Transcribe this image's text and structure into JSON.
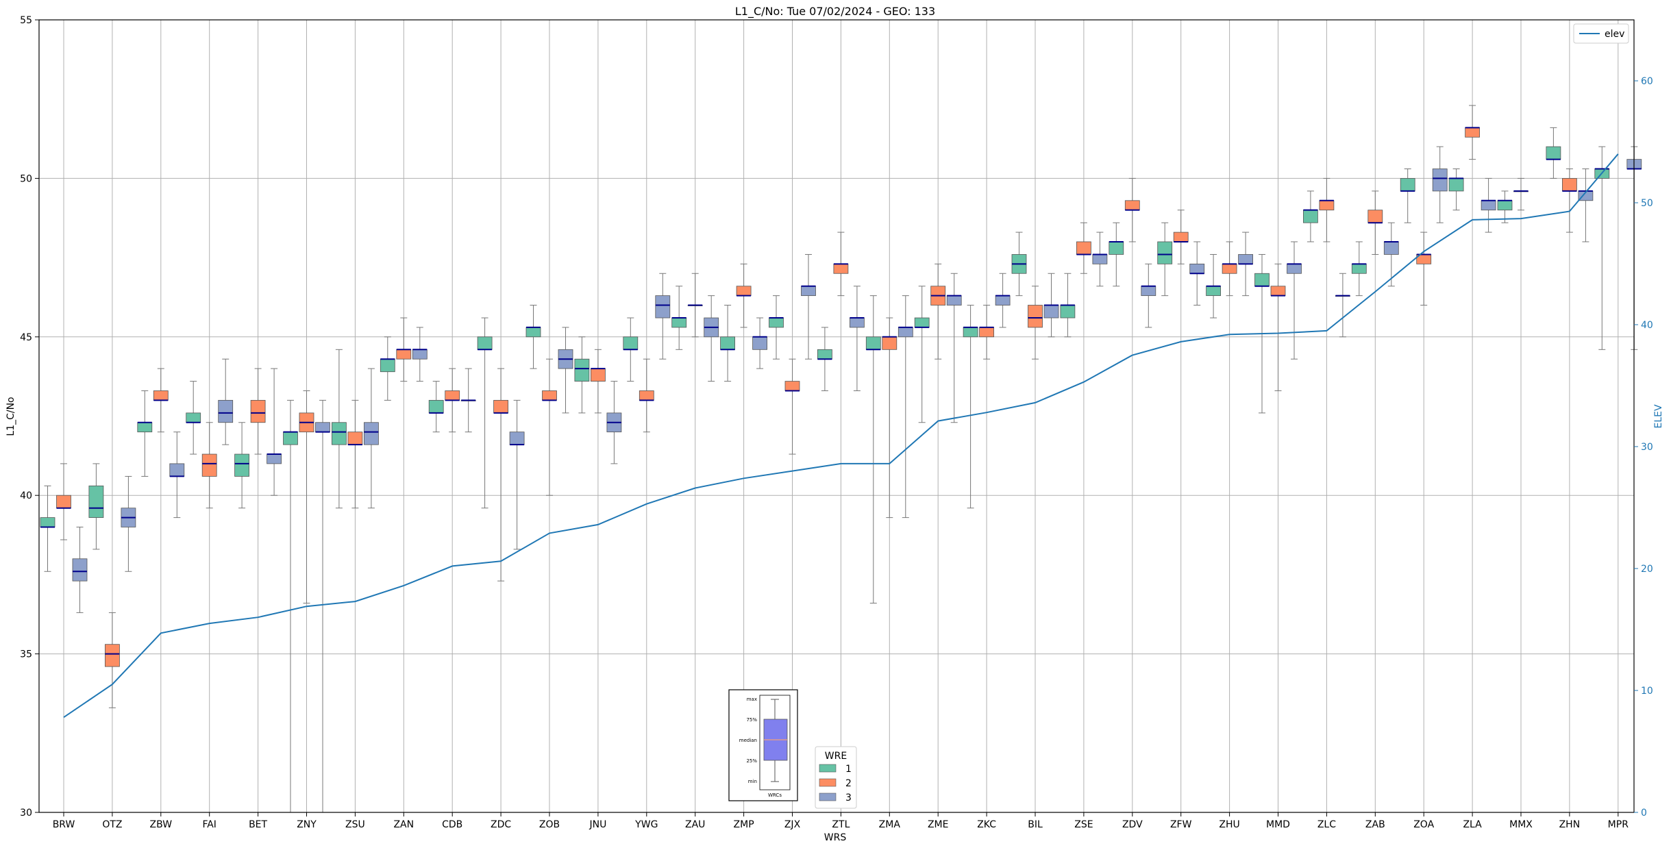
{
  "chart_data": {
    "type": "box",
    "title": "L1_C/No: Tue 07/02/2024 - GEO: 133",
    "xlabel": "WRS",
    "ylabel": "L1_C/No",
    "y2label": "ELEV",
    "ylim": [
      30,
      55
    ],
    "y2lim": [
      0,
      65
    ],
    "yticks": [
      30,
      35,
      40,
      45,
      50,
      55
    ],
    "y2ticks": [
      0,
      10,
      20,
      30,
      40,
      50,
      60
    ],
    "grid": true,
    "categories": [
      "BRW",
      "OTZ",
      "ZBW",
      "FAI",
      "BET",
      "ZNY",
      "ZSU",
      "ZAN",
      "CDB",
      "ZDC",
      "ZOB",
      "JNU",
      "YWG",
      "ZAU",
      "ZMP",
      "ZJX",
      "ZTL",
      "ZMA",
      "ZME",
      "ZKC",
      "BIL",
      "ZSE",
      "ZDV",
      "ZFW",
      "ZHU",
      "MMD",
      "ZLC",
      "ZAB",
      "ZOA",
      "ZLA",
      "MMX",
      "ZHN",
      "MPR"
    ],
    "wre_legend": {
      "title": "WRE",
      "entries": [
        {
          "label": "1",
          "color": "#66c2a5"
        },
        {
          "label": "2",
          "color": "#fc8d62"
        },
        {
          "label": "3",
          "color": "#8da0cb"
        }
      ],
      "placement": "bottom-center"
    },
    "line_legend": {
      "label": "elev",
      "color": "#1f77b4",
      "placement": "top-right"
    },
    "box_key": {
      "labels": [
        "max",
        "75%",
        "median",
        "25%",
        "min"
      ],
      "xlabel": "WRCs",
      "fill": "#8080ee"
    },
    "median_color": "#00008b",
    "whisker_color": "#777777",
    "elev": [
      7.8,
      10.5,
      14.7,
      15.5,
      16.0,
      16.9,
      17.3,
      18.6,
      20.2,
      20.6,
      22.9,
      23.6,
      25.3,
      26.6,
      27.4,
      28.0,
      28.6,
      28.6,
      32.1,
      32.8,
      33.6,
      35.3,
      37.5,
      38.6,
      39.2,
      39.3,
      39.5,
      42.7,
      46.0,
      48.6,
      48.7,
      49.3,
      54.0
    ],
    "series": [
      {
        "name": "1",
        "boxes": [
          {
            "x": "BRW",
            "min": 37.6,
            "q1": 39.0,
            "med": 39.0,
            "q3": 39.3,
            "max": 40.3
          },
          {
            "x": "OTZ",
            "min": 38.3,
            "q1": 39.3,
            "med": 39.6,
            "q3": 40.3,
            "max": 41.0
          },
          {
            "x": "ZBW",
            "min": 40.6,
            "q1": 42.0,
            "med": 42.3,
            "q3": 42.3,
            "max": 43.3
          },
          {
            "x": "FAI",
            "min": 41.3,
            "q1": 42.3,
            "med": 42.3,
            "q3": 42.6,
            "max": 43.6
          },
          {
            "x": "BET",
            "min": 39.6,
            "q1": 40.6,
            "med": 41.0,
            "q3": 41.3,
            "max": 42.3
          },
          {
            "x": "ZNY",
            "min": 30.0,
            "q1": 41.6,
            "med": 42.0,
            "q3": 42.0,
            "max": 43.0
          },
          {
            "x": "ZSU",
            "min": 39.6,
            "q1": 41.6,
            "med": 42.0,
            "q3": 42.3,
            "max": 44.6
          },
          {
            "x": "ZAN",
            "min": 43.0,
            "q1": 43.9,
            "med": 44.3,
            "q3": 44.3,
            "max": 45.0
          },
          {
            "x": "CDB",
            "min": 42.0,
            "q1": 42.6,
            "med": 42.6,
            "q3": 43.0,
            "max": 43.6
          },
          {
            "x": "ZDC",
            "min": 39.6,
            "q1": 44.6,
            "med": 44.6,
            "q3": 45.0,
            "max": 45.6
          },
          {
            "x": "ZOB",
            "min": 44.0,
            "q1": 45.0,
            "med": 45.3,
            "q3": 45.3,
            "max": 46.0
          },
          {
            "x": "JNU",
            "min": 42.6,
            "q1": 43.6,
            "med": 44.0,
            "q3": 44.3,
            "max": 45.0
          },
          {
            "x": "YWG",
            "min": 43.6,
            "q1": 44.6,
            "med": 44.6,
            "q3": 45.0,
            "max": 45.6
          },
          {
            "x": "ZAU",
            "min": 44.6,
            "q1": 45.3,
            "med": 45.6,
            "q3": 45.6,
            "max": 46.6
          },
          {
            "x": "ZMP",
            "min": 43.6,
            "q1": 44.6,
            "med": 44.6,
            "q3": 45.0,
            "max": 46.0
          },
          {
            "x": "ZJX",
            "min": 44.3,
            "q1": 45.3,
            "med": 45.6,
            "q3": 45.6,
            "max": 46.3
          },
          {
            "x": "ZTL",
            "min": 43.3,
            "q1": 44.3,
            "med": 44.3,
            "q3": 44.6,
            "max": 45.3
          },
          {
            "x": "ZMA",
            "min": 36.6,
            "q1": 44.6,
            "med": 44.6,
            "q3": 45.0,
            "max": 46.3
          },
          {
            "x": "ZME",
            "min": 42.3,
            "q1": 45.3,
            "med": 45.3,
            "q3": 45.6,
            "max": 46.6
          },
          {
            "x": "ZKC",
            "min": 39.6,
            "q1": 45.0,
            "med": 45.3,
            "q3": 45.3,
            "max": 46.0
          },
          {
            "x": "BIL",
            "min": 46.3,
            "q1": 47.0,
            "med": 47.3,
            "q3": 47.6,
            "max": 48.3
          },
          {
            "x": "ZSE",
            "min": 45.0,
            "q1": 45.6,
            "med": 46.0,
            "q3": 46.0,
            "max": 47.0
          },
          {
            "x": "ZDV",
            "min": 46.6,
            "q1": 47.6,
            "med": 48.0,
            "q3": 48.0,
            "max": 48.6
          },
          {
            "x": "ZFW",
            "min": 46.3,
            "q1": 47.3,
            "med": 47.6,
            "q3": 48.0,
            "max": 48.6
          },
          {
            "x": "ZHU",
            "min": 45.6,
            "q1": 46.3,
            "med": 46.6,
            "q3": 46.6,
            "max": 47.6
          },
          {
            "x": "MMD",
            "min": 42.6,
            "q1": 46.6,
            "med": 46.6,
            "q3": 47.0,
            "max": 47.6
          },
          {
            "x": "ZLC",
            "min": 48.0,
            "q1": 48.6,
            "med": 49.0,
            "q3": 49.0,
            "max": 49.6
          },
          {
            "x": "ZAB",
            "min": 46.3,
            "q1": 47.0,
            "med": 47.3,
            "q3": 47.3,
            "max": 48.0
          },
          {
            "x": "ZOA",
            "min": 48.6,
            "q1": 49.6,
            "med": 49.6,
            "q3": 50.0,
            "max": 50.3
          },
          {
            "x": "ZLA",
            "min": 49.0,
            "q1": 49.6,
            "med": 50.0,
            "q3": 50.0,
            "max": 50.3
          },
          {
            "x": "MMX",
            "min": 48.6,
            "q1": 49.0,
            "med": 49.3,
            "q3": 49.3,
            "max": 49.6
          },
          {
            "x": "ZHN",
            "min": 50.0,
            "q1": 50.6,
            "med": 50.6,
            "q3": 51.0,
            "max": 51.6
          },
          {
            "x": "MPR",
            "min": 44.6,
            "q1": 50.0,
            "med": 50.3,
            "q3": 50.3,
            "max": 51.0
          }
        ]
      },
      {
        "name": "2",
        "boxes": [
          {
            "x": "BRW",
            "min": 38.6,
            "q1": 39.6,
            "med": 39.6,
            "q3": 40.0,
            "max": 41.0
          },
          {
            "x": "OTZ",
            "min": 33.3,
            "q1": 34.6,
            "med": 35.0,
            "q3": 35.3,
            "max": 36.3
          },
          {
            "x": "ZBW",
            "min": 42.0,
            "q1": 43.0,
            "med": 43.0,
            "q3": 43.3,
            "max": 44.0
          },
          {
            "x": "FAI",
            "min": 39.6,
            "q1": 40.6,
            "med": 41.0,
            "q3": 41.3,
            "max": 42.3
          },
          {
            "x": "BET",
            "min": 41.3,
            "q1": 42.3,
            "med": 42.6,
            "q3": 43.0,
            "max": 44.0
          },
          {
            "x": "ZNY",
            "min": 36.6,
            "q1": 42.0,
            "med": 42.3,
            "q3": 42.6,
            "max": 43.3
          },
          {
            "x": "ZSU",
            "min": 39.6,
            "q1": 41.6,
            "med": 41.6,
            "q3": 42.0,
            "max": 43.0
          },
          {
            "x": "ZAN",
            "min": 43.6,
            "q1": 44.3,
            "med": 44.6,
            "q3": 44.6,
            "max": 45.6
          },
          {
            "x": "CDB",
            "min": 42.0,
            "q1": 43.0,
            "med": 43.0,
            "q3": 43.3,
            "max": 44.0
          },
          {
            "x": "ZDC",
            "min": 37.3,
            "q1": 42.6,
            "med": 42.6,
            "q3": 43.0,
            "max": 44.0
          },
          {
            "x": "ZOB",
            "min": 40.0,
            "q1": 43.0,
            "med": 43.0,
            "q3": 43.3,
            "max": 44.3
          },
          {
            "x": "JNU",
            "min": 42.6,
            "q1": 43.6,
            "med": 44.0,
            "q3": 44.0,
            "max": 44.6
          },
          {
            "x": "YWG",
            "min": 42.0,
            "q1": 43.0,
            "med": 43.0,
            "q3": 43.3,
            "max": 44.3
          },
          {
            "x": "ZAU",
            "min": 45.0,
            "q1": 46.0,
            "med": 46.0,
            "q3": 46.0,
            "max": 47.0
          },
          {
            "x": "ZMP",
            "min": 45.3,
            "q1": 46.3,
            "med": 46.3,
            "q3": 46.6,
            "max": 47.3
          },
          {
            "x": "ZJX",
            "min": 41.3,
            "q1": 43.3,
            "med": 43.3,
            "q3": 43.6,
            "max": 44.3
          },
          {
            "x": "ZTL",
            "min": 46.3,
            "q1": 47.0,
            "med": 47.3,
            "q3": 47.3,
            "max": 48.3
          },
          {
            "x": "ZMA",
            "min": 39.3,
            "q1": 44.6,
            "med": 45.0,
            "q3": 45.0,
            "max": 45.6
          },
          {
            "x": "ZME",
            "min": 44.3,
            "q1": 46.0,
            "med": 46.3,
            "q3": 46.6,
            "max": 47.3
          },
          {
            "x": "ZKC",
            "min": 44.3,
            "q1": 45.0,
            "med": 45.3,
            "q3": 45.3,
            "max": 46.0
          },
          {
            "x": "BIL",
            "min": 44.3,
            "q1": 45.3,
            "med": 45.6,
            "q3": 46.0,
            "max": 46.6
          },
          {
            "x": "ZSE",
            "min": 47.0,
            "q1": 47.6,
            "med": 47.6,
            "q3": 48.0,
            "max": 48.6
          },
          {
            "x": "ZDV",
            "min": 48.0,
            "q1": 49.0,
            "med": 49.0,
            "q3": 49.3,
            "max": 50.0
          },
          {
            "x": "ZFW",
            "min": 47.3,
            "q1": 48.0,
            "med": 48.0,
            "q3": 48.3,
            "max": 49.0
          },
          {
            "x": "ZHU",
            "min": 46.3,
            "q1": 47.0,
            "med": 47.3,
            "q3": 47.3,
            "max": 48.0
          },
          {
            "x": "MMD",
            "min": 43.3,
            "q1": 46.3,
            "med": 46.3,
            "q3": 46.6,
            "max": 47.3
          },
          {
            "x": "ZLC",
            "min": 48.0,
            "q1": 49.0,
            "med": 49.3,
            "q3": 49.3,
            "max": 50.0
          },
          {
            "x": "ZAB",
            "min": 47.6,
            "q1": 48.6,
            "med": 48.6,
            "q3": 49.0,
            "max": 49.6
          },
          {
            "x": "ZOA",
            "min": 46.0,
            "q1": 47.3,
            "med": 47.6,
            "q3": 47.6,
            "max": 48.3
          },
          {
            "x": "ZLA",
            "min": 50.6,
            "q1": 51.3,
            "med": 51.6,
            "q3": 51.6,
            "max": 52.3
          },
          {
            "x": "MMX",
            "min": 49.0,
            "q1": 49.6,
            "med": 49.6,
            "q3": 49.6,
            "max": 50.0
          },
          {
            "x": "ZHN",
            "min": 48.3,
            "q1": 49.6,
            "med": 49.6,
            "q3": 50.0,
            "max": 50.3
          },
          {
            "x": "MPR",
            "min": null,
            "q1": null,
            "med": null,
            "q3": null,
            "max": null
          }
        ]
      },
      {
        "name": "3",
        "boxes": [
          {
            "x": "BRW",
            "min": 36.3,
            "q1": 37.3,
            "med": 37.6,
            "q3": 38.0,
            "max": 39.0
          },
          {
            "x": "OTZ",
            "min": 37.6,
            "q1": 39.0,
            "med": 39.3,
            "q3": 39.6,
            "max": 40.6
          },
          {
            "x": "ZBW",
            "min": 39.3,
            "q1": 40.6,
            "med": 40.6,
            "q3": 41.0,
            "max": 42.0
          },
          {
            "x": "FAI",
            "min": 41.6,
            "q1": 42.3,
            "med": 42.6,
            "q3": 43.0,
            "max": 44.3
          },
          {
            "x": "BET",
            "min": 40.0,
            "q1": 41.0,
            "med": 41.3,
            "q3": 41.3,
            "max": 44.0
          },
          {
            "x": "ZNY",
            "min": 30.0,
            "q1": 42.0,
            "med": 42.0,
            "q3": 42.3,
            "max": 43.0
          },
          {
            "x": "ZSU",
            "min": 39.6,
            "q1": 41.6,
            "med": 42.0,
            "q3": 42.3,
            "max": 44.0
          },
          {
            "x": "ZAN",
            "min": 43.6,
            "q1": 44.3,
            "med": 44.6,
            "q3": 44.6,
            "max": 45.3
          },
          {
            "x": "CDB",
            "min": 42.0,
            "q1": 43.0,
            "med": 43.0,
            "q3": 43.0,
            "max": 44.0
          },
          {
            "x": "ZDC",
            "min": 38.3,
            "q1": 41.6,
            "med": 41.6,
            "q3": 42.0,
            "max": 43.0
          },
          {
            "x": "ZOB",
            "min": 42.6,
            "q1": 44.0,
            "med": 44.3,
            "q3": 44.6,
            "max": 45.3
          },
          {
            "x": "JNU",
            "min": 41.0,
            "q1": 42.0,
            "med": 42.3,
            "q3": 42.6,
            "max": 43.6
          },
          {
            "x": "YWG",
            "min": 44.3,
            "q1": 45.6,
            "med": 46.0,
            "q3": 46.3,
            "max": 47.0
          },
          {
            "x": "ZAU",
            "min": 43.6,
            "q1": 45.0,
            "med": 45.3,
            "q3": 45.6,
            "max": 46.3
          },
          {
            "x": "ZMP",
            "min": 44.0,
            "q1": 44.6,
            "med": 45.0,
            "q3": 45.0,
            "max": 45.6
          },
          {
            "x": "ZJX",
            "min": 44.3,
            "q1": 46.3,
            "med": 46.6,
            "q3": 46.6,
            "max": 47.6
          },
          {
            "x": "ZTL",
            "min": 43.3,
            "q1": 45.3,
            "med": 45.6,
            "q3": 45.6,
            "max": 46.6
          },
          {
            "x": "ZMA",
            "min": 39.3,
            "q1": 45.0,
            "med": 45.3,
            "q3": 45.3,
            "max": 46.3
          },
          {
            "x": "ZME",
            "min": 42.3,
            "q1": 46.0,
            "med": 46.3,
            "q3": 46.3,
            "max": 47.0
          },
          {
            "x": "ZKC",
            "min": 45.3,
            "q1": 46.0,
            "med": 46.3,
            "q3": 46.3,
            "max": 47.0
          },
          {
            "x": "BIL",
            "min": 45.0,
            "q1": 45.6,
            "med": 46.0,
            "q3": 46.0,
            "max": 47.0
          },
          {
            "x": "ZSE",
            "min": 46.6,
            "q1": 47.3,
            "med": 47.6,
            "q3": 47.6,
            "max": 48.3
          },
          {
            "x": "ZDV",
            "min": 45.3,
            "q1": 46.3,
            "med": 46.6,
            "q3": 46.6,
            "max": 47.3
          },
          {
            "x": "ZFW",
            "min": 46.0,
            "q1": 47.0,
            "med": 47.0,
            "q3": 47.3,
            "max": 48.0
          },
          {
            "x": "ZHU",
            "min": 46.3,
            "q1": 47.3,
            "med": 47.3,
            "q3": 47.6,
            "max": 48.3
          },
          {
            "x": "MMD",
            "min": 44.3,
            "q1": 47.0,
            "med": 47.3,
            "q3": 47.3,
            "max": 48.0
          },
          {
            "x": "ZLC",
            "min": 45.0,
            "q1": 46.3,
            "med": 46.3,
            "q3": 46.3,
            "max": 47.0
          },
          {
            "x": "ZAB",
            "min": 46.6,
            "q1": 47.6,
            "med": 48.0,
            "q3": 48.0,
            "max": 48.6
          },
          {
            "x": "ZOA",
            "min": 48.6,
            "q1": 49.6,
            "med": 50.0,
            "q3": 50.3,
            "max": 51.0
          },
          {
            "x": "ZLA",
            "min": 48.3,
            "q1": 49.0,
            "med": 49.3,
            "q3": 49.3,
            "max": 50.0
          },
          {
            "x": "MMX",
            "min": null,
            "q1": null,
            "med": null,
            "q3": null,
            "max": null
          },
          {
            "x": "ZHN",
            "min": 48.0,
            "q1": 49.3,
            "med": 49.6,
            "q3": 49.6,
            "max": 50.3
          },
          {
            "x": "MPR",
            "min": 44.6,
            "q1": 50.3,
            "med": 50.3,
            "q3": 50.6,
            "max": 51.0
          }
        ]
      }
    ]
  }
}
